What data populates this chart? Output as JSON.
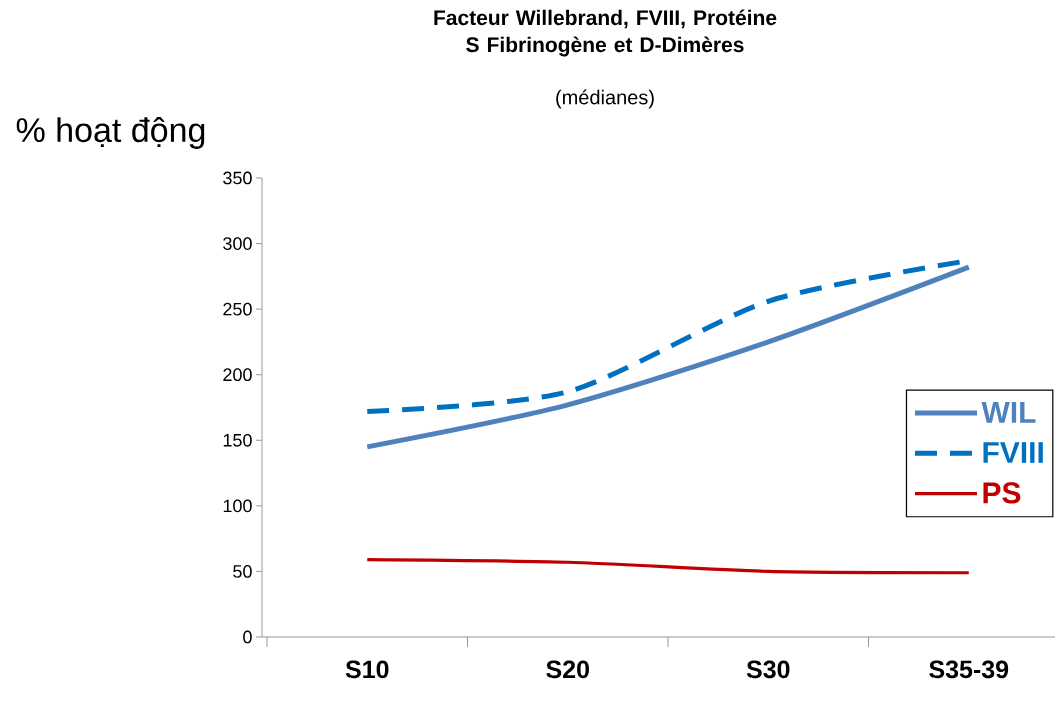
{
  "chart_data": {
    "type": "line",
    "title": "Facteur Willebrand, FVIII, Protéine S Fibrinogène et D-Dimères",
    "subtitle": "(médianes)",
    "annotations": [
      "% hoạt động"
    ],
    "categories": [
      "S10",
      "S20",
      "S30",
      "S35-39"
    ],
    "series": [
      {
        "name": "WIL",
        "color": "#4f81bd",
        "values": [
          145,
          177,
          225,
          282
        ]
      },
      {
        "name": "FVIII",
        "color": "#0070c0",
        "line_style": "dashed",
        "values": [
          172,
          187,
          256,
          287
        ]
      },
      {
        "name": "PS",
        "color": "#c00000",
        "values": [
          59,
          57,
          50,
          49
        ]
      }
    ],
    "ylim": [
      0,
      350
    ],
    "yticks": [
      0,
      50,
      100,
      150,
      200,
      250,
      300,
      350
    ],
    "legend": "right"
  }
}
